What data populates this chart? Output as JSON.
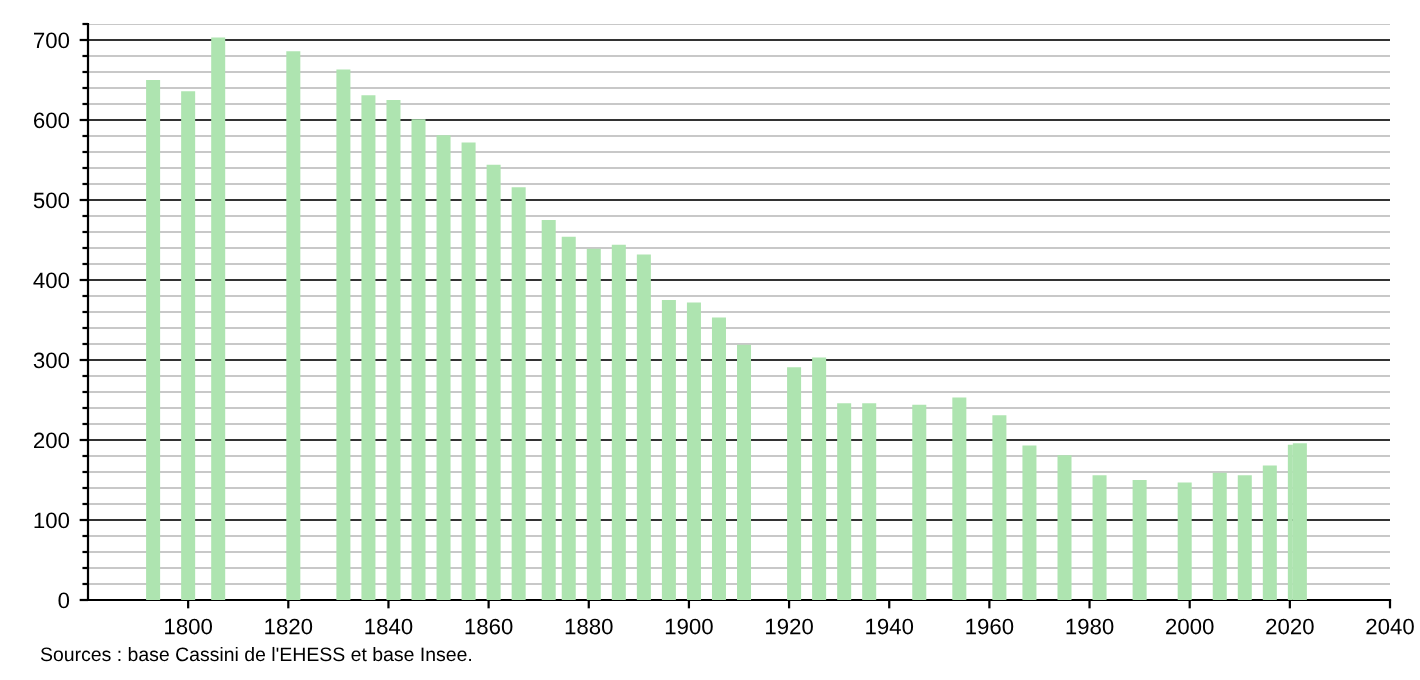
{
  "chart_data": {
    "type": "bar",
    "x": [
      1793,
      1800,
      1806,
      1821,
      1831,
      1836,
      1841,
      1846,
      1851,
      1856,
      1861,
      1866,
      1872,
      1876,
      1881,
      1886,
      1891,
      1896,
      1901,
      1906,
      1911,
      1921,
      1926,
      1931,
      1936,
      1946,
      1954,
      1962,
      1968,
      1975,
      1982,
      1990,
      1999,
      2006,
      2011,
      2016,
      2021,
      2022
    ],
    "values": [
      650,
      636,
      703,
      686,
      663,
      631,
      625,
      601,
      581,
      572,
      544,
      516,
      475,
      454,
      439,
      444,
      432,
      375,
      372,
      353,
      319,
      291,
      303,
      246,
      246,
      244,
      253,
      231,
      193,
      181,
      156,
      150,
      147,
      159,
      156,
      168,
      194,
      196
    ],
    "color": "#aee4b0",
    "xlim": [
      1780,
      2040
    ],
    "xticks": [
      1800,
      1820,
      1840,
      1860,
      1880,
      1900,
      1920,
      1940,
      1960,
      1980,
      2000,
      2020,
      2040
    ],
    "ylim": [
      0,
      720
    ],
    "yticks": [
      0,
      {
        "value": 20,
        "label": null
      },
      {
        "value": 40,
        "label": null
      },
      {
        "value": 60,
        "label": null
      },
      {
        "value": 80,
        "label": null
      },
      100,
      {
        "value": 120,
        "label": null
      },
      {
        "value": 140,
        "label": null
      },
      {
        "value": 160,
        "label": null
      },
      {
        "value": 180,
        "label": null
      },
      200,
      {
        "value": 220,
        "label": null
      },
      {
        "value": 240,
        "label": null
      },
      {
        "value": 260,
        "label": null
      },
      {
        "value": 280,
        "label": null
      },
      300,
      {
        "value": 320,
        "label": null
      },
      {
        "value": 340,
        "label": null
      },
      {
        "value": 360,
        "label": null
      },
      {
        "value": 380,
        "label": null
      },
      400,
      {
        "value": 420,
        "label": null
      },
      {
        "value": 440,
        "label": null
      },
      {
        "value": 460,
        "label": null
      },
      {
        "value": 480,
        "label": null
      },
      500,
      {
        "value": 520,
        "label": null
      },
      {
        "value": 540,
        "label": null
      },
      {
        "value": 560,
        "label": null
      },
      {
        "value": 580,
        "label": null
      },
      600,
      {
        "value": 620,
        "label": null
      },
      {
        "value": 640,
        "label": null
      },
      {
        "value": 660,
        "label": null
      },
      {
        "value": 680,
        "label": null
      },
      700,
      {
        "value": 720,
        "label": null
      }
    ],
    "grid": "y",
    "annotations": [
      "Sources : base Cassini de l'EHESS et base Insee."
    ]
  }
}
